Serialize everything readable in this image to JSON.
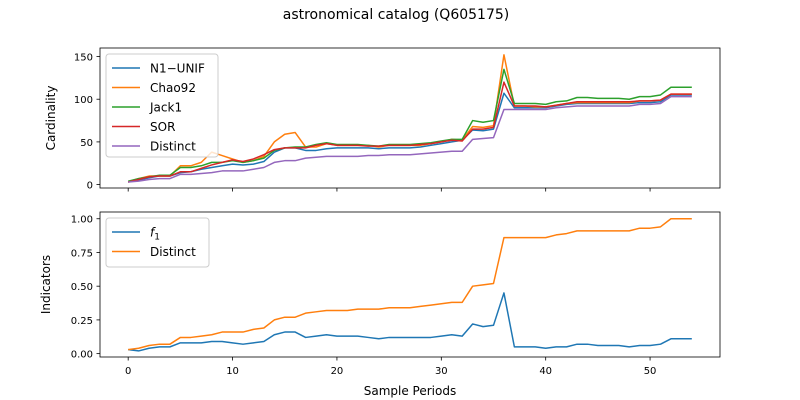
{
  "figure": {
    "title": "astronomical catalog (Q605175)",
    "xlabel": "Sample Periods"
  },
  "chart_data": [
    {
      "type": "line",
      "title": "",
      "xlabel": "",
      "ylabel": "Cardinality",
      "xlim": [
        -2.7,
        56.7
      ],
      "ylim": [
        -4,
        160
      ],
      "xticks": [
        0,
        10,
        20,
        30,
        40,
        50
      ],
      "xticklabels": [],
      "yticks": [
        0,
        50,
        100,
        150
      ],
      "yticklabels": [
        "0",
        "50",
        "100",
        "150"
      ],
      "grid": false,
      "legend_position": "upper-left",
      "x": [
        0,
        1,
        2,
        3,
        4,
        5,
        6,
        7,
        8,
        9,
        10,
        11,
        12,
        13,
        14,
        15,
        16,
        17,
        18,
        19,
        20,
        21,
        22,
        23,
        24,
        25,
        26,
        27,
        28,
        29,
        30,
        31,
        32,
        33,
        34,
        35,
        36,
        37,
        38,
        39,
        40,
        41,
        42,
        43,
        44,
        45,
        46,
        47,
        48,
        49,
        50,
        51,
        52,
        53,
        54
      ],
      "series": [
        {
          "name": "N1−UNIF",
          "color": "#1f77b4",
          "values": [
            3,
            5,
            8,
            10,
            10,
            14,
            15,
            18,
            20,
            22,
            24,
            23,
            24,
            27,
            38,
            43,
            43,
            40,
            40,
            42,
            43,
            43,
            43,
            43,
            42,
            43,
            43,
            43,
            44,
            46,
            48,
            50,
            52,
            64,
            63,
            65,
            107,
            90,
            90,
            90,
            90,
            92,
            94,
            95,
            95,
            95,
            95,
            95,
            95,
            96,
            96,
            97,
            105,
            105,
            105
          ]
        },
        {
          "name": "Chao92",
          "color": "#ff7f0e",
          "values": [
            3,
            7,
            10,
            10,
            10,
            22,
            22,
            26,
            38,
            34,
            30,
            26,
            28,
            33,
            50,
            59,
            61,
            44,
            44,
            48,
            46,
            46,
            46,
            46,
            44,
            46,
            46,
            46,
            46,
            48,
            50,
            53,
            52,
            68,
            67,
            69,
            152,
            92,
            92,
            91,
            91,
            93,
            95,
            96,
            96,
            96,
            96,
            96,
            96,
            98,
            98,
            99,
            106,
            106,
            106
          ]
        },
        {
          "name": "Jack1",
          "color": "#2ca02c",
          "values": [
            4,
            7,
            9,
            11,
            11,
            20,
            20,
            22,
            26,
            26,
            28,
            26,
            28,
            31,
            40,
            43,
            44,
            44,
            47,
            49,
            47,
            47,
            47,
            46,
            45,
            47,
            47,
            47,
            48,
            49,
            51,
            53,
            53,
            75,
            73,
            75,
            135,
            95,
            95,
            95,
            94,
            97,
            98,
            102,
            102,
            101,
            101,
            101,
            100,
            103,
            103,
            105,
            114,
            114,
            114
          ]
        },
        {
          "name": "SOR",
          "color": "#d62728",
          "values": [
            3,
            6,
            9,
            10,
            10,
            15,
            15,
            19,
            23,
            26,
            29,
            27,
            30,
            35,
            41,
            43,
            43,
            43,
            46,
            48,
            46,
            46,
            46,
            45,
            45,
            46,
            46,
            46,
            47,
            48,
            50,
            52,
            51,
            65,
            65,
            67,
            120,
            92,
            92,
            92,
            91,
            93,
            95,
            97,
            97,
            97,
            97,
            97,
            97,
            98,
            98,
            99,
            106,
            106,
            106
          ]
        },
        {
          "name": "Distinct",
          "color": "#9467bd",
          "values": [
            3,
            4,
            6,
            7,
            7,
            12,
            12,
            13,
            14,
            16,
            16,
            16,
            18,
            20,
            26,
            28,
            28,
            31,
            32,
            33,
            33,
            33,
            33,
            34,
            34,
            35,
            35,
            35,
            36,
            37,
            38,
            39,
            39,
            53,
            54,
            55,
            88,
            88,
            88,
            88,
            88,
            90,
            91,
            92,
            92,
            92,
            92,
            92,
            92,
            94,
            94,
            95,
            103,
            103,
            103
          ]
        }
      ]
    },
    {
      "type": "line",
      "title": "",
      "xlabel": "Sample Periods",
      "ylabel": "Indicators",
      "xlim": [
        -2.7,
        56.7
      ],
      "ylim": [
        -0.025,
        1.05
      ],
      "xticks": [
        0,
        10,
        20,
        30,
        40,
        50
      ],
      "xticklabels": [
        "0",
        "10",
        "20",
        "30",
        "40",
        "50"
      ],
      "yticks": [
        0.0,
        0.25,
        0.5,
        0.75,
        1.0
      ],
      "yticklabels": [
        "0.00",
        "0.25",
        "0.50",
        "0.75",
        "1.00"
      ],
      "grid": false,
      "legend_position": "upper-left",
      "x": [
        0,
        1,
        2,
        3,
        4,
        5,
        6,
        7,
        8,
        9,
        10,
        11,
        12,
        13,
        14,
        15,
        16,
        17,
        18,
        19,
        20,
        21,
        22,
        23,
        24,
        25,
        26,
        27,
        28,
        29,
        30,
        31,
        32,
        33,
        34,
        35,
        36,
        37,
        38,
        39,
        40,
        41,
        42,
        43,
        44,
        45,
        46,
        47,
        48,
        49,
        50,
        51,
        52,
        53,
        54
      ],
      "series": [
        {
          "name": "f1",
          "label_main": "f",
          "label_sub": "1",
          "color": "#1f77b4",
          "values": [
            0.03,
            0.02,
            0.04,
            0.05,
            0.05,
            0.08,
            0.08,
            0.08,
            0.09,
            0.09,
            0.08,
            0.07,
            0.08,
            0.09,
            0.14,
            0.16,
            0.16,
            0.12,
            0.13,
            0.14,
            0.13,
            0.13,
            0.13,
            0.12,
            0.11,
            0.12,
            0.12,
            0.12,
            0.12,
            0.12,
            0.13,
            0.14,
            0.13,
            0.22,
            0.2,
            0.21,
            0.45,
            0.05,
            0.05,
            0.05,
            0.04,
            0.05,
            0.05,
            0.07,
            0.07,
            0.06,
            0.06,
            0.06,
            0.05,
            0.06,
            0.06,
            0.07,
            0.11,
            0.11,
            0.11
          ]
        },
        {
          "name": "Distinct",
          "color": "#ff7f0e",
          "values": [
            0.03,
            0.04,
            0.06,
            0.07,
            0.07,
            0.12,
            0.12,
            0.13,
            0.14,
            0.16,
            0.16,
            0.16,
            0.18,
            0.19,
            0.25,
            0.27,
            0.27,
            0.3,
            0.31,
            0.32,
            0.32,
            0.32,
            0.33,
            0.33,
            0.33,
            0.34,
            0.34,
            0.34,
            0.35,
            0.36,
            0.37,
            0.38,
            0.38,
            0.5,
            0.51,
            0.52,
            0.86,
            0.86,
            0.86,
            0.86,
            0.86,
            0.88,
            0.89,
            0.91,
            0.91,
            0.91,
            0.91,
            0.91,
            0.91,
            0.93,
            0.93,
            0.94,
            1.0,
            1.0,
            1.0
          ]
        }
      ]
    }
  ]
}
